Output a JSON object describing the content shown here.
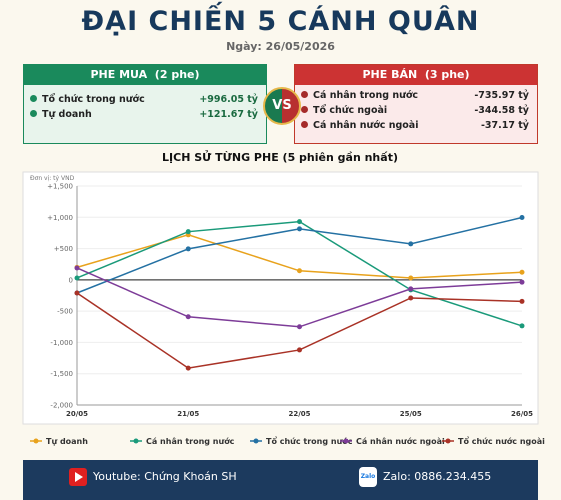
{
  "header": {
    "title": "ĐẠI CHIẾN 5 CÁNH QUÂN",
    "date": "Ngày: 26/05/2026"
  },
  "buy": {
    "title": "PHE MUA  (2 phe)",
    "rows": [
      {
        "name": "Tổ chức trong nước",
        "amount": "+996.05 tỷ"
      },
      {
        "name": "Tự doanh",
        "amount": "+121.67 tỷ"
      }
    ]
  },
  "vs": "VS",
  "sell": {
    "title": "PHE BÁN  (3 phe)",
    "rows": [
      {
        "name": "Cá nhân trong nước",
        "amount": "-735.97 tỷ"
      },
      {
        "name": "Tổ chức ngoài",
        "amount": "-344.58 tỷ"
      },
      {
        "name": "Cá nhân nước ngoài",
        "amount": "-37.17 tỷ"
      }
    ]
  },
  "chart_data": {
    "type": "line",
    "title": "LỊCH SỬ TỪNG PHE (5 phiên gần nhất)",
    "unit_note": "Đơn vị: tỷ VND",
    "categories": [
      "20/05",
      "21/05",
      "22/05",
      "25/05",
      "26/05"
    ],
    "series": [
      {
        "name": "Tự doanh",
        "color": "#e8a21c",
        "values": [
          200,
          720,
          145,
          30,
          121.67
        ]
      },
      {
        "name": "Cá nhân trong nước",
        "color": "#1a9a7a",
        "values": [
          30,
          770,
          930,
          -160,
          -735.97
        ]
      },
      {
        "name": "Tổ chức trong nước",
        "color": "#2471a3",
        "values": [
          -210,
          495,
          815,
          575,
          996.05
        ]
      },
      {
        "name": "Cá nhân nước ngoài",
        "color": "#7d3c98",
        "values": [
          190,
          -590,
          -750,
          -145,
          -37.17
        ]
      },
      {
        "name": "Tổ chức nước ngoài",
        "color": "#a93226",
        "values": [
          -210,
          -1410,
          -1120,
          -290,
          -344.58
        ]
      }
    ],
    "ylim": [
      -2000,
      1500
    ],
    "yticks": [
      {
        "value": 1500,
        "label": "+1,500"
      },
      {
        "value": 1000,
        "label": "+1,000"
      },
      {
        "value": 500,
        "label": "+500"
      },
      0,
      -500,
      {
        "value": -1000,
        "label": "-1,000"
      },
      {
        "value": -1500,
        "label": "-1,500"
      },
      {
        "value": -2000,
        "label": "-2,000"
      }
    ],
    "grid": true
  },
  "footer": {
    "youtube": "Youtube: Chứng Khoán SH",
    "zalo_icon": "Zalo",
    "zalo": "Zalo: 0886.234.455"
  }
}
